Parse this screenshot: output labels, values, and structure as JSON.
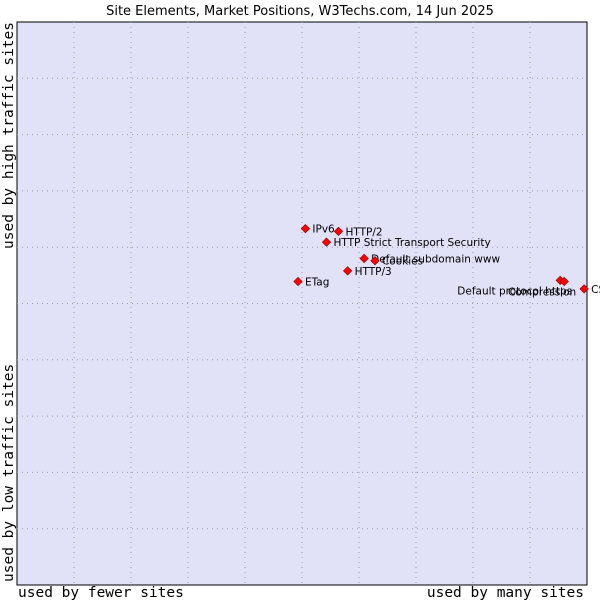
{
  "chart_data": {
    "type": "scatter",
    "title": "Site Elements, Market Positions, W3Techs.com, 14 Jun 2025",
    "xlabel_left": "used by fewer sites",
    "xlabel_right": "used by many sites",
    "ylabel_top": "used by high traffic sites",
    "ylabel_bottom": "used by low traffic sites",
    "xlim": [
      0,
      100
    ],
    "ylim": [
      0,
      100
    ],
    "grid": true,
    "colors": {
      "plot_background": "#e1e1f8",
      "grid": "#9a9ab0",
      "marker": "#ff0000",
      "marker_edge": "#880000"
    },
    "points": [
      {
        "label": "IPv6",
        "x": 50.6,
        "y": 63.3,
        "label_pos": "right"
      },
      {
        "label": "HTTP/2",
        "x": 56.4,
        "y": 62.8,
        "label_pos": "right"
      },
      {
        "label": "HTTP Strict Transport Security",
        "x": 54.3,
        "y": 60.9,
        "label_pos": "right"
      },
      {
        "label": "Default subdomain www",
        "x": 60.9,
        "y": 58.0,
        "label_pos": "right"
      },
      {
        "label": "Cookies",
        "x": 62.8,
        "y": 57.6,
        "label_pos": "right"
      },
      {
        "label": "HTTP/3",
        "x": 58.0,
        "y": 55.8,
        "label_pos": "right"
      },
      {
        "label": "ETag",
        "x": 49.3,
        "y": 53.9,
        "label_pos": "right"
      },
      {
        "label": "Default protocol https",
        "x": 95.3,
        "y": 54.1,
        "label_pos": "below-left"
      },
      {
        "label": "Compression",
        "x": 96.0,
        "y": 53.9,
        "label_pos": "below-left"
      },
      {
        "label": "CSS",
        "x": 99.5,
        "y": 52.6,
        "label_pos": "right"
      }
    ]
  }
}
